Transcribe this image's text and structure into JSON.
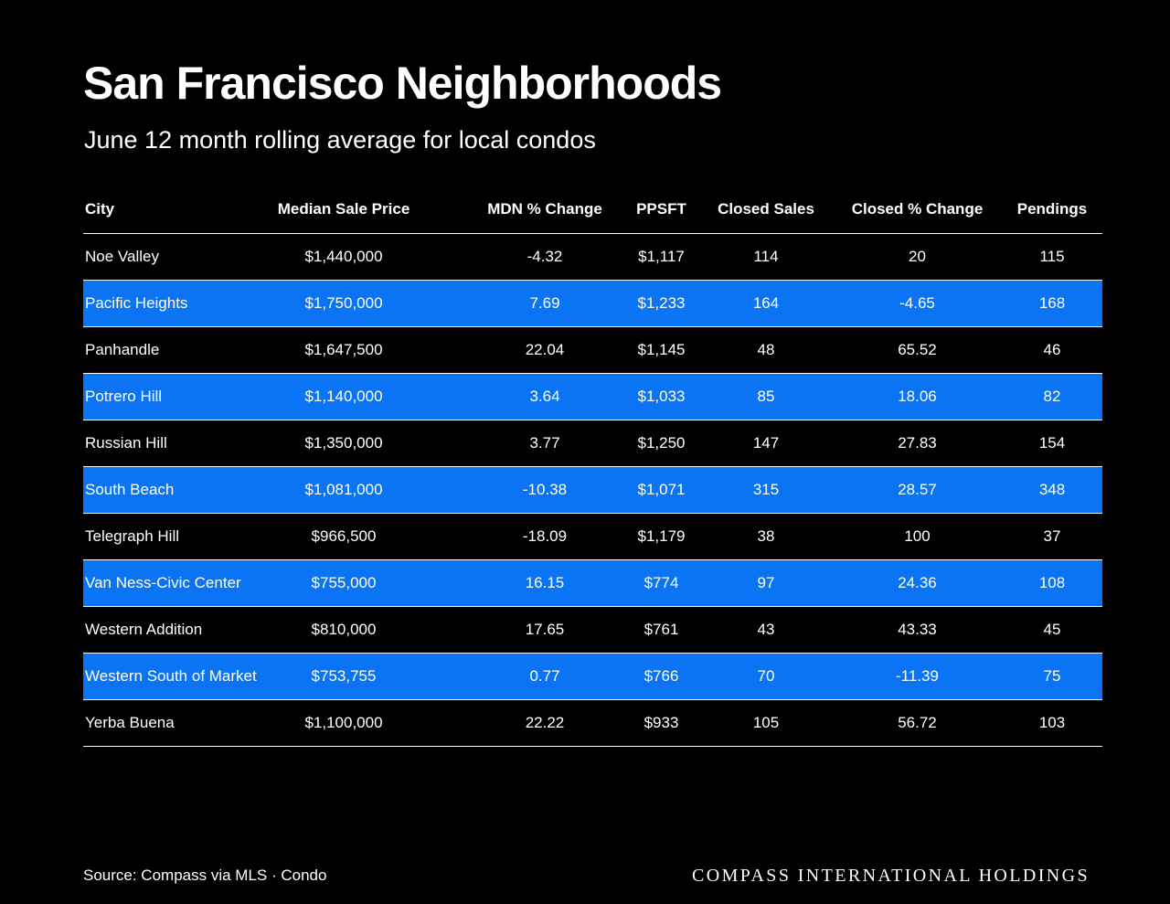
{
  "header": {
    "title": "San Francisco Neighborhoods",
    "subtitle": "June 12 month rolling average for local condos"
  },
  "colors": {
    "background": "#000000",
    "highlight_row": "#0a74f4",
    "text": "#ffffff"
  },
  "chart_data": {
    "type": "table",
    "columns": [
      "City",
      "Median Sale Price",
      "MDN % Change",
      "PPSFT",
      "Closed Sales",
      "Closed % Change",
      "Pendings"
    ],
    "rows": [
      [
        "Noe Valley",
        "$1,440,000",
        "-4.32",
        "$1,117",
        "114",
        "20",
        "115"
      ],
      [
        "Pacific Heights",
        "$1,750,000",
        "7.69",
        "$1,233",
        "164",
        "-4.65",
        "168"
      ],
      [
        "Panhandle",
        "$1,647,500",
        "22.04",
        "$1,145",
        "48",
        "65.52",
        "46"
      ],
      [
        "Potrero Hill",
        "$1,140,000",
        "3.64",
        "$1,033",
        "85",
        "18.06",
        "82"
      ],
      [
        "Russian Hill",
        "$1,350,000",
        "3.77",
        "$1,250",
        "147",
        "27.83",
        "154"
      ],
      [
        "South Beach",
        "$1,081,000",
        "-10.38",
        "$1,071",
        "315",
        "28.57",
        "348"
      ],
      [
        "Telegraph Hill",
        "$966,500",
        "-18.09",
        "$1,179",
        "38",
        "100",
        "37"
      ],
      [
        "Van Ness-Civic Center",
        "$755,000",
        "16.15",
        "$774",
        "97",
        "24.36",
        "108"
      ],
      [
        "Western Addition",
        "$810,000",
        "17.65",
        "$761",
        "43",
        "43.33",
        "45"
      ],
      [
        "Western South of Market",
        "$753,755",
        "0.77",
        "$766",
        "70",
        "-11.39",
        "75"
      ],
      [
        "Yerba Buena",
        "$1,100,000",
        "22.22",
        "$933",
        "105",
        "56.72",
        "103"
      ]
    ]
  },
  "footer": {
    "source": "Source: Compass via MLS · Condo",
    "brand": "COMPASS INTERNATIONAL HOLDINGS"
  }
}
